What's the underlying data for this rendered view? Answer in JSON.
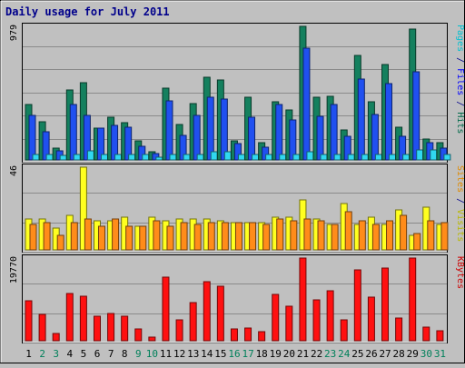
{
  "chart_data": {
    "type": "bar",
    "title": "Daily usage for July 2011",
    "categories": [
      "1",
      "2",
      "3",
      "4",
      "5",
      "6",
      "7",
      "8",
      "9",
      "10",
      "11",
      "12",
      "13",
      "14",
      "15",
      "16",
      "17",
      "18",
      "19",
      "20",
      "21",
      "22",
      "23",
      "24",
      "25",
      "26",
      "27",
      "28",
      "29",
      "30",
      "31"
    ],
    "weekend_days": [
      2,
      3,
      9,
      10,
      16,
      17,
      23,
      24,
      30,
      31
    ],
    "panels": [
      {
        "id": "hits-panel",
        "max_label": "979",
        "ylim": [
          0,
          979
        ],
        "ylabel_parts": [
          {
            "text": "Pages",
            "color": "#00c0d0"
          },
          {
            "text": " / ",
            "color": "#00008b"
          },
          {
            "text": "Files",
            "color": "#0000ff"
          },
          {
            "text": " / ",
            "color": "#00008b"
          },
          {
            "text": "Hits",
            "color": "#006a4a"
          }
        ],
        "series": [
          {
            "name": "Hits",
            "color": "#14805e",
            "values": [
              405,
              277,
              85,
              513,
              567,
              236,
              311,
              270,
              142,
              61,
              527,
              257,
              412,
              605,
              587,
              140,
              459,
              128,
              425,
              365,
              979,
              459,
              466,
              220,
              767,
              425,
              702,
              243,
              956,
              155,
              128
            ]
          },
          {
            "name": "Files",
            "color": "#2050f0",
            "values": [
              324,
              209,
              68,
              405,
              324,
              236,
              256,
              243,
              101,
              47,
              432,
              182,
              324,
              459,
              445,
              122,
              310,
              95,
              405,
              290,
              816,
              317,
              405,
              176,
              590,
              331,
              560,
              176,
              648,
              128,
              88
            ]
          },
          {
            "name": "Pages",
            "color": "#30d8f0",
            "values": [
              40,
              40,
              34,
              40,
              68,
              40,
              40,
              40,
              40,
              20,
              40,
              40,
              40,
              60,
              60,
              40,
              40,
              40,
              40,
              40,
              60,
              40,
              40,
              40,
              40,
              40,
              40,
              40,
              70,
              70,
              40
            ]
          }
        ]
      },
      {
        "id": "visits-panel",
        "max_label": "46",
        "ylim": [
          0,
          46
        ],
        "ylabel_parts": [
          {
            "text": "Sites",
            "color": "#e08a00"
          },
          {
            "text": " / ",
            "color": "#00008b"
          },
          {
            "text": "Visits",
            "color": "#b8b800"
          }
        ],
        "series": [
          {
            "name": "Visits",
            "color": "#ffff20",
            "values": [
              17,
              17,
              12,
              19,
              46,
              16,
              16,
              18,
              13,
              18,
              16,
              17,
              17,
              17,
              16,
              15,
              15,
              15,
              18,
              18,
              28,
              17,
              14,
              26,
              14,
              18,
              14,
              22,
              8,
              24,
              14
            ]
          },
          {
            "name": "Sites",
            "color": "#ff8c1a",
            "values": [
              14,
              15,
              8,
              15,
              17,
              13,
              17,
              13,
              13,
              16,
              13,
              15,
              14,
              15,
              15,
              15,
              15,
              14,
              17,
              16,
              17,
              16,
              14,
              21,
              16,
              14,
              16,
              19,
              9,
              16,
              15
            ]
          }
        ]
      },
      {
        "id": "kbytes-panel",
        "max_label": "19770",
        "ylim": [
          0,
          19770
        ],
        "ylabel_parts": [
          {
            "text": "KBytes",
            "color": "#cc0000"
          }
        ],
        "series": [
          {
            "name": "KBytes",
            "color": "#ff1010",
            "values": [
              9650,
              6350,
              1630,
              11230,
              10570,
              5790,
              6570,
              5960,
              2860,
              930,
              15300,
              5070,
              9090,
              14110,
              13050,
              2850,
              3140,
              2220,
              11140,
              8340,
              19770,
              9860,
              12000,
              5030,
              16970,
              10450,
              17370,
              5460,
              19770,
              3300,
              2440
            ]
          }
        ]
      }
    ]
  }
}
